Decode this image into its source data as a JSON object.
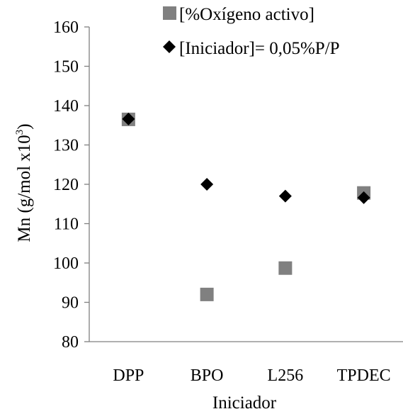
{
  "chart_data": {
    "type": "scatter",
    "categories": [
      "DPP",
      "BPO",
      "L256",
      "TPDEC"
    ],
    "series": [
      {
        "name": "[%Oxígeno activo]",
        "marker": "square",
        "color": "#808080",
        "values": [
          136.5,
          92,
          98.7,
          117.8
        ]
      },
      {
        "name": "[Iniciador]= 0,05%P/P",
        "marker": "diamond",
        "color": "#000000",
        "values": [
          136.6,
          120,
          117,
          116.6
        ]
      }
    ],
    "xlabel": "Iniciador",
    "ylabel": "Mn  (g/mol x10",
    "ylabel_superscript": "3",
    "ylabel_suffix": ")",
    "ylim": [
      80,
      160
    ],
    "yticks": [
      80,
      90,
      100,
      110,
      120,
      130,
      140,
      150,
      160
    ],
    "grid": false,
    "legend_position": "top-right"
  }
}
